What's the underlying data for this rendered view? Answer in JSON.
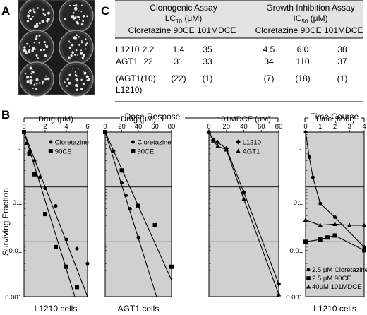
{
  "panels": {
    "A": "A",
    "B": "B",
    "C": "C"
  },
  "table": {
    "groups": [
      {
        "line1": "Clonogenic Assay",
        "line2_main": "LC",
        "line2_sub": "10",
        "line2_unit": " (μM)",
        "cols": "Cloretazine 90CE 101MDCE"
      },
      {
        "line1": "Growth Inhibition Assay",
        "line2_main": "IC",
        "line2_sub": "50",
        "line2_unit": " (μM)",
        "cols": "Cloretazine 90CE 101MDCE"
      }
    ],
    "rows": [
      {
        "label": "L1210",
        "values": [
          "2.2",
          "1.4",
          "35",
          "4.5",
          "6.0",
          "38"
        ]
      },
      {
        "label": "AGT1",
        "values": [
          "22",
          "31",
          "33",
          "34",
          "110",
          "37"
        ]
      },
      {
        "label": "(AGT1/",
        "label2": "L1210)",
        "values": [
          "(10)",
          "(22)",
          "(1)",
          "(7)",
          "(18)",
          "(1)"
        ]
      }
    ]
  },
  "section_labels": {
    "dose": "Dose  Respose",
    "time": "Time  Course"
  },
  "y_axis_label": "Surviving Fraction",
  "y_ticks": [
    "1",
    "0.1",
    "0.01",
    "0.001"
  ],
  "chart_data": [
    {
      "type": "scatter",
      "xlabel": "Drug (μM)",
      "caption": "L1210 cells",
      "xlim": [
        0,
        6
      ],
      "x_ticks": [
        "0",
        "2",
        "4",
        "6"
      ],
      "ylim": [
        0.001,
        1
      ],
      "y_scale": "log",
      "legend_position": "top-right",
      "series": [
        {
          "name": "Cloretazine",
          "marker": "circle",
          "points": [
            [
              0,
              1
            ],
            [
              0.25,
              0.62
            ],
            [
              0.5,
              0.45
            ],
            [
              1,
              0.3
            ],
            [
              1.5,
              0.15
            ],
            [
              2,
              0.095
            ],
            [
              3,
              0.045
            ],
            [
              4,
              0.011
            ],
            [
              5,
              0.0075
            ],
            [
              6,
              0.004
            ]
          ],
          "fit": [
            [
              0,
              1
            ],
            [
              4.8,
              0.001
            ]
          ]
        },
        {
          "name": "90CE",
          "marker": "square",
          "points": [
            [
              0,
              1
            ],
            [
              0.5,
              0.4
            ],
            [
              1,
              0.17
            ],
            [
              2,
              0.032
            ],
            [
              3,
              0.008
            ],
            [
              4,
              0.0035
            ],
            [
              5,
              0.0015
            ]
          ],
          "fit": [
            [
              0,
              1
            ],
            [
              6,
              0.001
            ]
          ]
        }
      ]
    },
    {
      "type": "scatter",
      "xlabel": "Drug (μM)",
      "caption": "AGT1 cells",
      "xlim": [
        0,
        80
      ],
      "x_ticks": [
        "0",
        "20",
        "40",
        "60",
        "80"
      ],
      "ylim": [
        0.001,
        1
      ],
      "y_scale": "log",
      "legend_position": "top-right",
      "series": [
        {
          "name": "Cloretazine",
          "marker": "circle",
          "points": [
            [
              0,
              1
            ],
            [
              10,
              0.45
            ],
            [
              20,
              0.12
            ],
            [
              25,
              0.07
            ],
            [
              30,
              0.04
            ],
            [
              40,
              0.012
            ]
          ],
          "fit": [
            [
              0,
              1
            ],
            [
              62,
              0.001
            ]
          ]
        },
        {
          "name": "90CE",
          "marker": "square",
          "points": [
            [
              0,
              1
            ],
            [
              20,
              0.2
            ],
            [
              40,
              0.045
            ],
            [
              60,
              0.02
            ],
            [
              80,
              0.0035
            ]
          ],
          "fit": [
            [
              0,
              1
            ],
            [
              80,
              0.002
            ]
          ]
        }
      ]
    },
    {
      "type": "line",
      "xlabel": "101MDCE (μM)",
      "caption": "",
      "xlim": [
        0,
        80
      ],
      "x_ticks": [
        "0",
        "20",
        "40",
        "60",
        "80"
      ],
      "ylim": [
        0.001,
        1
      ],
      "y_scale": "log",
      "legend_position": "top-right",
      "series": [
        {
          "name": "L1210",
          "marker": "diamond",
          "points": [
            [
              0,
              1
            ],
            [
              5,
              0.72
            ],
            [
              10,
              0.65
            ],
            [
              20,
              0.5
            ],
            [
              40,
              0.08
            ],
            [
              80,
              0.0017
            ]
          ]
        },
        {
          "name": "AGT1",
          "marker": "triangle",
          "points": [
            [
              0,
              1
            ],
            [
              5,
              0.7
            ],
            [
              10,
              0.55
            ],
            [
              20,
              0.48
            ],
            [
              40,
              0.06
            ],
            [
              80,
              0.0011
            ]
          ]
        }
      ]
    },
    {
      "type": "line",
      "xlabel": "Time (hour)",
      "caption": "L1210 cells",
      "xlim": [
        0,
        4
      ],
      "x_ticks": [
        "0",
        "1",
        "2",
        "3",
        "4"
      ],
      "ylim": [
        0.001,
        1
      ],
      "y_scale": "log",
      "legend_position": "bottom",
      "series": [
        {
          "name": "2.5 μM Cloretazine",
          "marker": "circle",
          "points": [
            [
              0,
              1
            ],
            [
              0.25,
              0.35
            ],
            [
              0.5,
              0.15
            ],
            [
              1,
              0.05
            ],
            [
              2,
              0.028
            ],
            [
              4,
              0.008
            ]
          ]
        },
        {
          "name": "2.5 μM 90CE",
          "marker": "square",
          "points": [
            [
              0,
              0.01
            ],
            [
              1,
              0.011
            ],
            [
              1.5,
              0.012
            ],
            [
              2,
              0.013
            ],
            [
              4,
              0.007
            ]
          ]
        },
        {
          "name": "40μM 101MDCE",
          "marker": "triangle",
          "points": [
            [
              0,
              0.025
            ],
            [
              1,
              0.02
            ],
            [
              2,
              0.021
            ],
            [
              3,
              0.02
            ],
            [
              4,
              0.02
            ]
          ]
        }
      ]
    }
  ]
}
